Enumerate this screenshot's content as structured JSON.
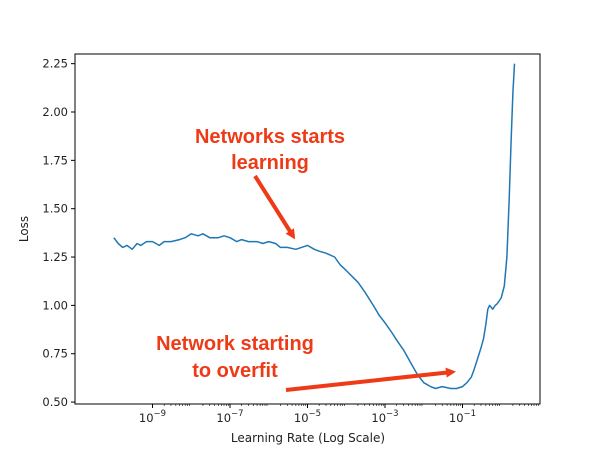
{
  "colors": {
    "line": "#1f77b4",
    "annotation": "#ee3a17",
    "axis": "#000000"
  },
  "chart_data": {
    "type": "line",
    "xscale": "log",
    "xlabel": "Learning Rate (Log Scale)",
    "ylabel": "Loss",
    "xlim": [
      1e-11,
      10
    ],
    "ylim": [
      0.49,
      2.3
    ],
    "grid": false,
    "x_ticks": [
      1e-09,
      1e-07,
      1e-05,
      0.001,
      0.1
    ],
    "x_tick_labels": [
      {
        "base": "10",
        "exp": "−9"
      },
      {
        "base": "10",
        "exp": "−7"
      },
      {
        "base": "10",
        "exp": "−5"
      },
      {
        "base": "10",
        "exp": "−3"
      },
      {
        "base": "10",
        "exp": "−1"
      }
    ],
    "y_ticks": [
      0.5,
      0.75,
      1.0,
      1.25,
      1.5,
      1.75,
      2.0,
      2.25
    ],
    "y_tick_labels": [
      "0.50",
      "0.75",
      "1.00",
      "1.25",
      "1.50",
      "1.75",
      "2.00",
      "2.25"
    ],
    "series": [
      {
        "x": [
          1e-10,
          1.3e-10,
          1.7e-10,
          2.2e-10,
          3e-10,
          4e-10,
          5e-10,
          7e-10,
          1e-09,
          1.5e-09,
          2e-09,
          3e-09,
          5e-09,
          7e-09,
          1e-08,
          1.5e-08,
          2e-08,
          3e-08,
          5e-08,
          7e-08,
          1e-07,
          1.5e-07,
          2e-07,
          3e-07,
          5e-07,
          7e-07,
          1e-06,
          1.5e-06,
          2e-06,
          3e-06,
          5e-06,
          7e-06,
          1e-05,
          1.5e-05,
          2e-05,
          3e-05,
          5e-05,
          7e-05,
          0.0001,
          0.0002,
          0.0003,
          0.0005,
          0.0007,
          0.001,
          0.0015,
          0.002,
          0.003,
          0.005,
          0.007,
          0.01,
          0.015,
          0.02,
          0.03,
          0.05,
          0.07,
          0.1,
          0.13,
          0.17,
          0.2,
          0.25,
          0.3,
          0.35,
          0.4,
          0.45,
          0.5,
          0.6,
          0.7,
          0.8,
          1.0,
          1.2,
          1.4,
          1.6,
          1.8,
          2.0,
          2.2
        ],
        "y": [
          1.35,
          1.32,
          1.3,
          1.31,
          1.29,
          1.32,
          1.31,
          1.33,
          1.33,
          1.31,
          1.33,
          1.33,
          1.34,
          1.35,
          1.37,
          1.36,
          1.37,
          1.35,
          1.35,
          1.36,
          1.35,
          1.33,
          1.34,
          1.33,
          1.33,
          1.32,
          1.33,
          1.32,
          1.3,
          1.3,
          1.29,
          1.3,
          1.31,
          1.29,
          1.28,
          1.27,
          1.25,
          1.21,
          1.18,
          1.12,
          1.07,
          1.0,
          0.95,
          0.91,
          0.86,
          0.82,
          0.77,
          0.69,
          0.64,
          0.6,
          0.58,
          0.57,
          0.58,
          0.57,
          0.57,
          0.58,
          0.6,
          0.63,
          0.67,
          0.73,
          0.78,
          0.83,
          0.9,
          0.98,
          1.0,
          0.98,
          1.0,
          1.01,
          1.04,
          1.1,
          1.25,
          1.55,
          1.85,
          2.1,
          2.25
        ]
      }
    ],
    "annotations": [
      {
        "lines": [
          "Networks starts",
          "learning"
        ]
      },
      {
        "lines": [
          "Network starting",
          "to overfit"
        ]
      }
    ]
  }
}
